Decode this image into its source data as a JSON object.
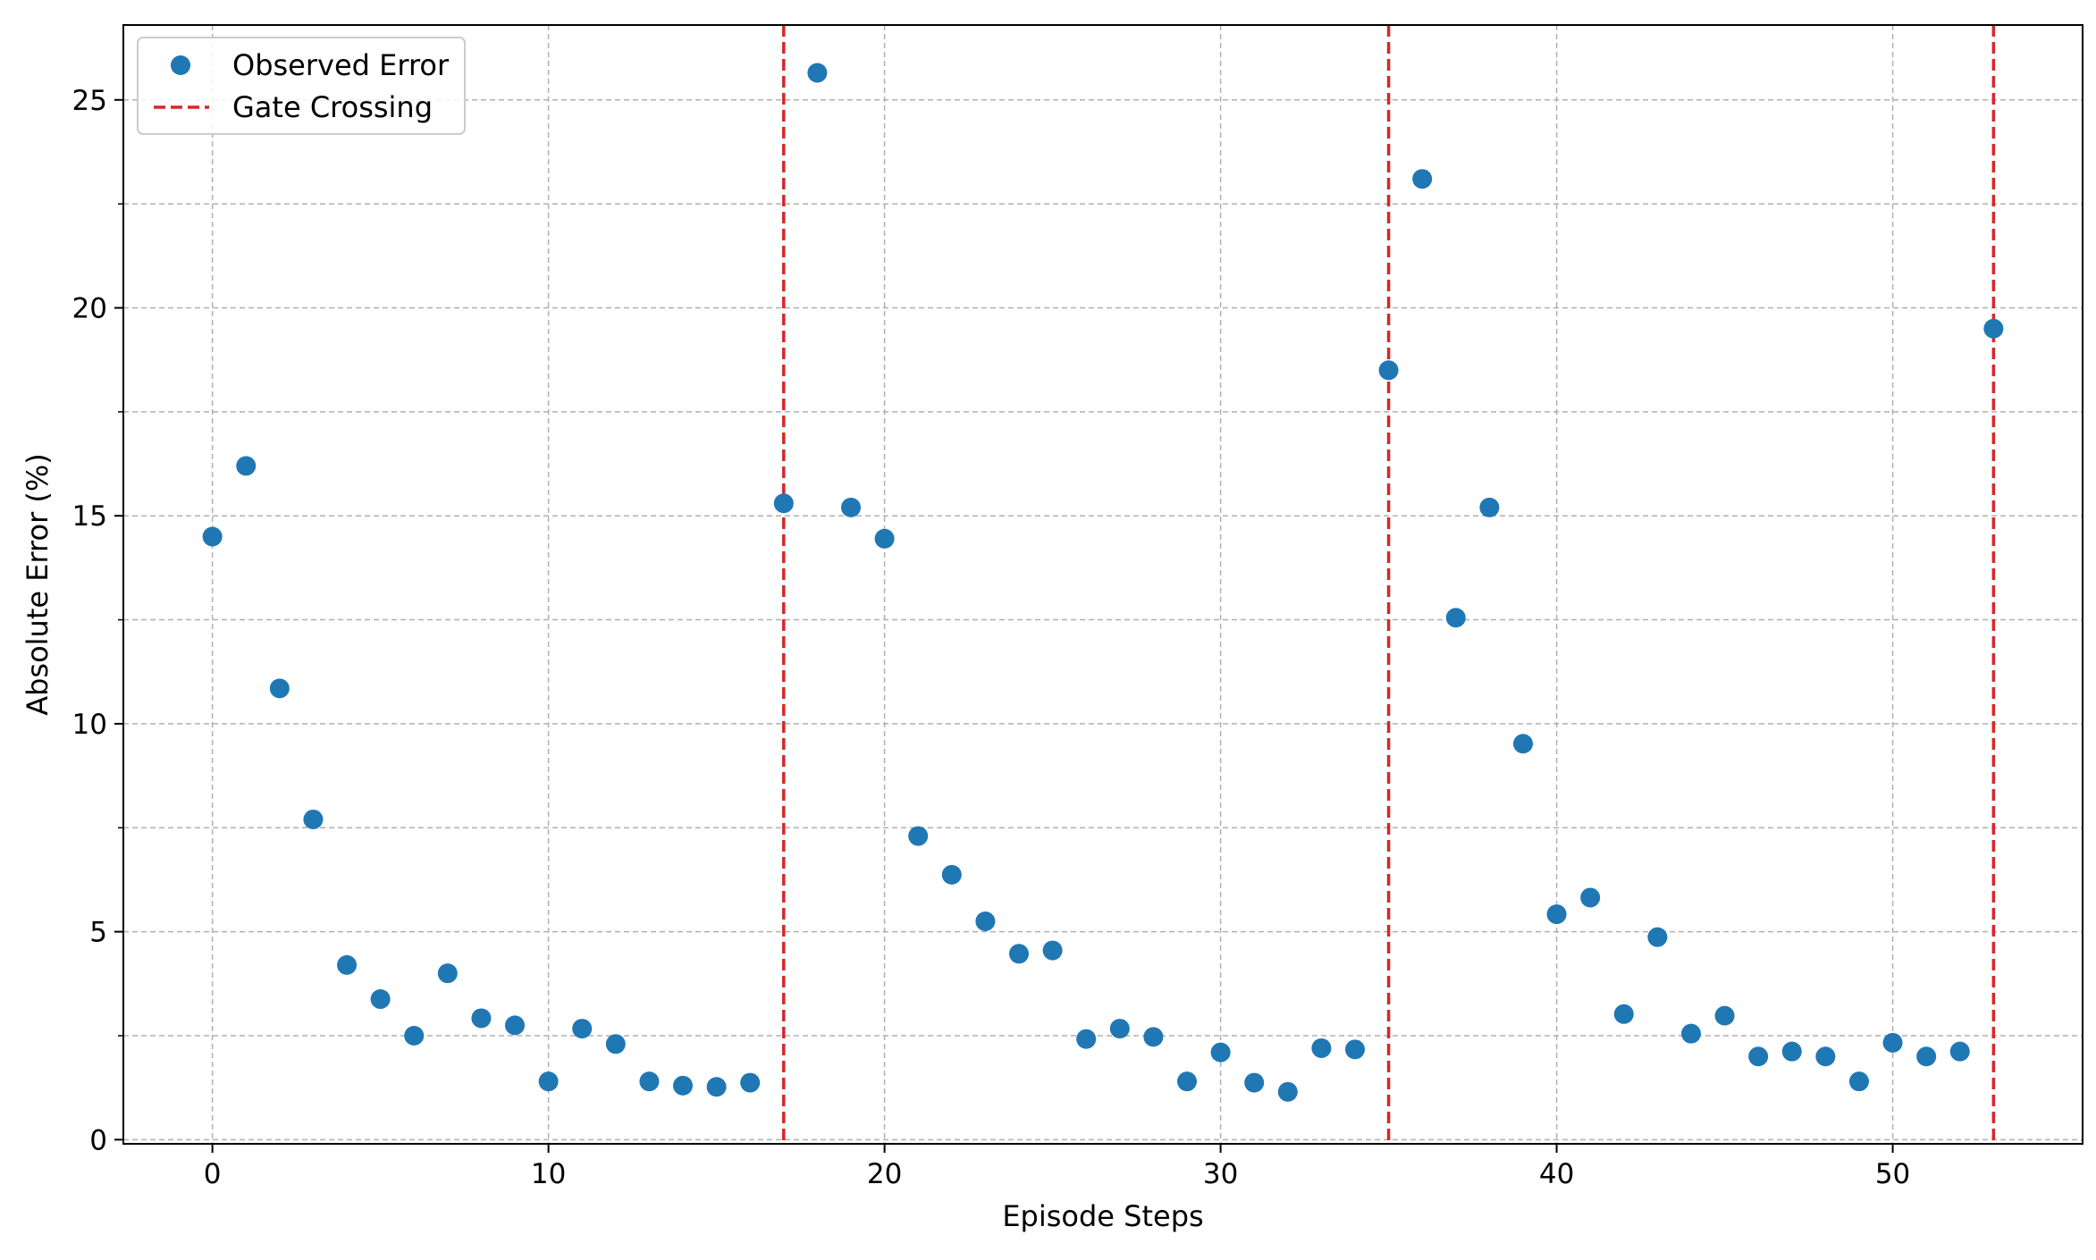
{
  "chart_data": {
    "type": "scatter",
    "title": "",
    "xlabel": "Episode Steps",
    "ylabel": "Absolute Error (%)",
    "xlim": [
      -2.65,
      55.65
    ],
    "ylim": [
      -0.1,
      26.8
    ],
    "xticks": [
      0,
      10,
      20,
      30,
      40,
      50
    ],
    "yticks": [
      0,
      5,
      10,
      15,
      20,
      25
    ],
    "y_minor_grid": [
      2.5,
      7.5,
      12.5,
      17.5,
      22.5
    ],
    "grid": true,
    "legend_position": "upper-left",
    "series": [
      {
        "name": "Observed Error",
        "color": "#1f77b4",
        "x": [
          0,
          1,
          2,
          3,
          4,
          5,
          6,
          7,
          8,
          9,
          10,
          11,
          12,
          13,
          14,
          15,
          16,
          17,
          18,
          19,
          20,
          21,
          22,
          23,
          24,
          25,
          26,
          27,
          28,
          29,
          30,
          31,
          32,
          33,
          34,
          35,
          36,
          37,
          38,
          39,
          40,
          41,
          42,
          43,
          44,
          45,
          46,
          47,
          48,
          49,
          50,
          51,
          52,
          53
        ],
        "y": [
          14.5,
          16.2,
          10.85,
          7.7,
          4.2,
          3.38,
          2.5,
          4.0,
          2.92,
          2.75,
          1.4,
          2.67,
          2.3,
          1.4,
          1.3,
          1.27,
          1.37,
          15.3,
          25.65,
          15.2,
          14.45,
          7.3,
          6.37,
          5.25,
          4.47,
          4.55,
          2.42,
          2.67,
          2.47,
          1.4,
          2.1,
          1.37,
          1.15,
          2.2,
          2.17,
          18.5,
          23.1,
          12.55,
          15.2,
          9.52,
          5.42,
          5.82,
          3.02,
          4.87,
          2.55,
          2.98,
          2.0,
          2.12,
          2.0,
          1.4,
          2.33,
          2.0,
          2.12,
          19.5
        ]
      }
    ],
    "vlines": {
      "name": "Gate Crossing",
      "color": "#d62728",
      "style": "dashed",
      "x": [
        17,
        35,
        53
      ]
    }
  }
}
